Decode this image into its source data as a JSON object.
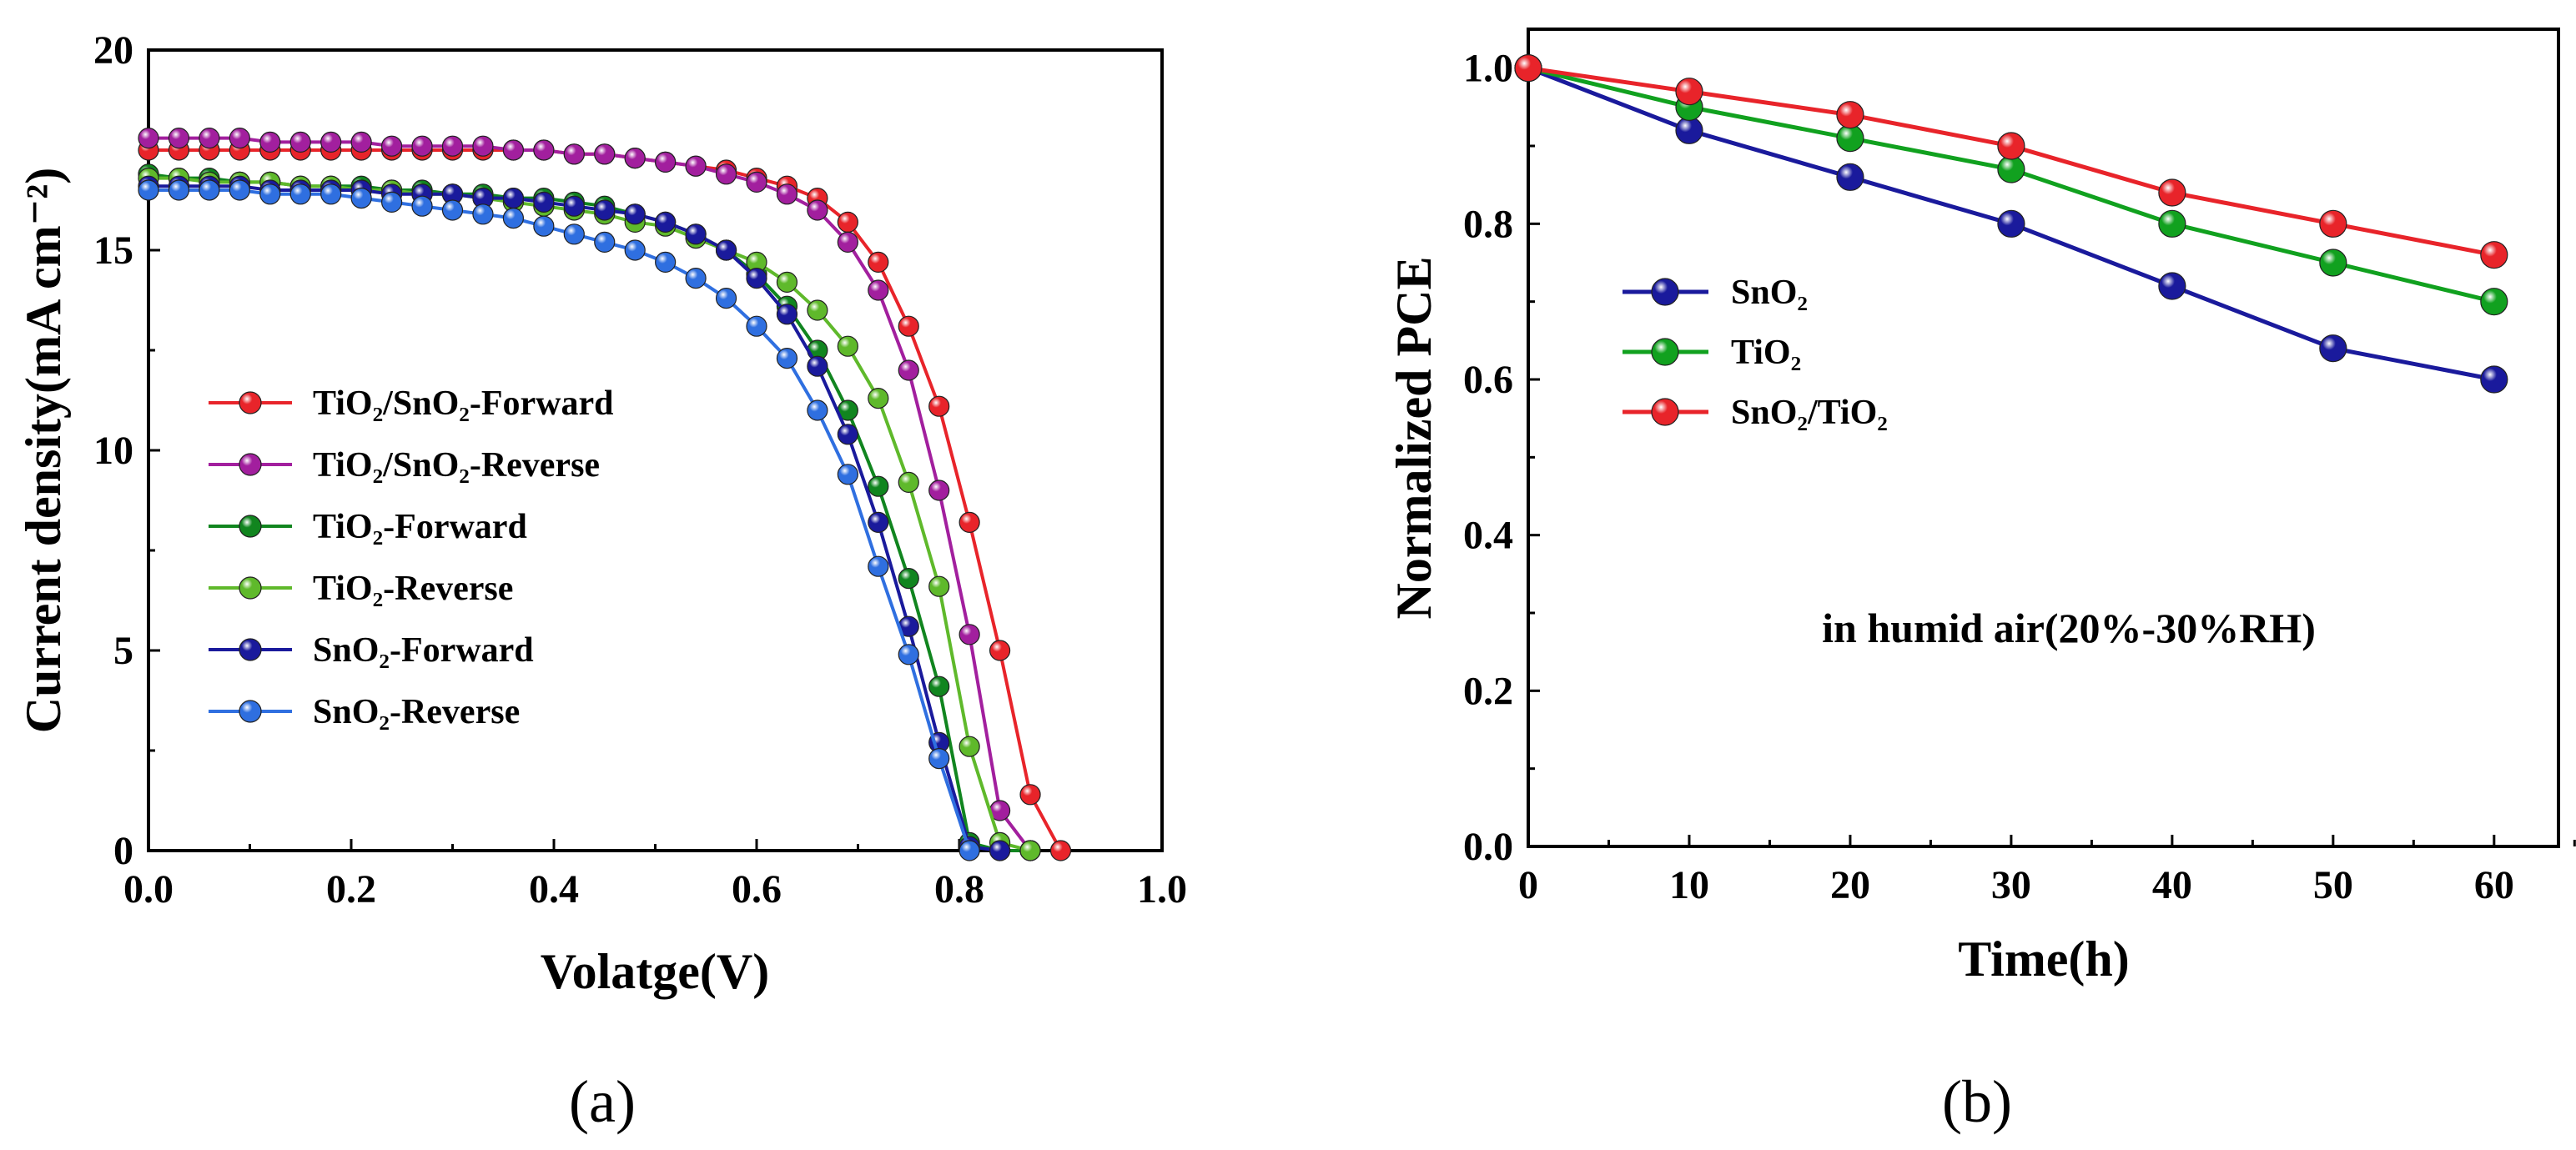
{
  "chart_data": [
    {
      "type": "line",
      "panel_label": "(a)",
      "xlabel": "Volatge(V)",
      "ylabel": "Current density(mA cm⁻²)",
      "xlim": [
        0,
        1.0
      ],
      "ylim": [
        0,
        20
      ],
      "xticks": [
        "0.0",
        "0.2",
        "0.4",
        "0.6",
        "0.8",
        "1.0"
      ],
      "yticks": [
        "0",
        "5",
        "10",
        "15",
        "20"
      ],
      "legend_position": "center-left",
      "series": [
        {
          "name": "TiO₂/SnO₂-Forward",
          "color": "#e8242a",
          "x": [
            0.0,
            0.03,
            0.06,
            0.09,
            0.12,
            0.15,
            0.18,
            0.21,
            0.24,
            0.27,
            0.3,
            0.33,
            0.36,
            0.39,
            0.42,
            0.45,
            0.48,
            0.51,
            0.54,
            0.57,
            0.6,
            0.63,
            0.66,
            0.69,
            0.72,
            0.75,
            0.78,
            0.81,
            0.84,
            0.87,
            0.9
          ],
          "y": [
            17.5,
            17.5,
            17.5,
            17.5,
            17.5,
            17.5,
            17.5,
            17.5,
            17.5,
            17.5,
            17.5,
            17.5,
            17.5,
            17.5,
            17.4,
            17.4,
            17.3,
            17.2,
            17.1,
            17.0,
            16.8,
            16.6,
            16.3,
            15.7,
            14.7,
            13.1,
            11.1,
            8.2,
            5.0,
            1.4,
            0.0
          ]
        },
        {
          "name": "TiO₂/SnO₂-Reverse",
          "color": "#a21f9e",
          "x": [
            0.0,
            0.03,
            0.06,
            0.09,
            0.12,
            0.15,
            0.18,
            0.21,
            0.24,
            0.27,
            0.3,
            0.33,
            0.36,
            0.39,
            0.42,
            0.45,
            0.48,
            0.51,
            0.54,
            0.57,
            0.6,
            0.63,
            0.66,
            0.69,
            0.72,
            0.75,
            0.78,
            0.81,
            0.84,
            0.87
          ],
          "y": [
            17.8,
            17.8,
            17.8,
            17.8,
            17.7,
            17.7,
            17.7,
            17.7,
            17.6,
            17.6,
            17.6,
            17.6,
            17.5,
            17.5,
            17.4,
            17.4,
            17.3,
            17.2,
            17.1,
            16.9,
            16.7,
            16.4,
            16.0,
            15.2,
            14.0,
            12.0,
            9.0,
            5.4,
            1.0,
            0.0
          ]
        },
        {
          "name": "TiO₂-Forward",
          "color": "#11851f",
          "x": [
            0.0,
            0.03,
            0.06,
            0.09,
            0.12,
            0.15,
            0.18,
            0.21,
            0.24,
            0.27,
            0.3,
            0.33,
            0.36,
            0.39,
            0.42,
            0.45,
            0.48,
            0.51,
            0.54,
            0.57,
            0.6,
            0.63,
            0.66,
            0.69,
            0.72,
            0.75,
            0.78,
            0.81,
            0.84,
            0.87
          ],
          "y": [
            16.9,
            16.8,
            16.8,
            16.7,
            16.7,
            16.6,
            16.6,
            16.6,
            16.5,
            16.5,
            16.4,
            16.4,
            16.3,
            16.3,
            16.2,
            16.1,
            15.9,
            15.7,
            15.4,
            15.0,
            14.4,
            13.6,
            12.5,
            11.0,
            9.1,
            6.8,
            4.1,
            0.2,
            0.0,
            0.0
          ]
        },
        {
          "name": "TiO₂-Reverse",
          "color": "#5fb92b",
          "x": [
            0.0,
            0.03,
            0.06,
            0.09,
            0.12,
            0.15,
            0.18,
            0.21,
            0.24,
            0.27,
            0.3,
            0.33,
            0.36,
            0.39,
            0.42,
            0.45,
            0.48,
            0.51,
            0.54,
            0.57,
            0.6,
            0.63,
            0.66,
            0.69,
            0.72,
            0.75,
            0.78,
            0.81,
            0.84,
            0.87
          ],
          "y": [
            16.8,
            16.8,
            16.7,
            16.7,
            16.7,
            16.6,
            16.6,
            16.5,
            16.5,
            16.4,
            16.4,
            16.3,
            16.2,
            16.1,
            16.0,
            15.9,
            15.7,
            15.6,
            15.3,
            15.0,
            14.7,
            14.2,
            13.5,
            12.6,
            11.3,
            9.2,
            6.6,
            2.6,
            0.2,
            0.0
          ]
        },
        {
          "name": "SnO₂-Forward",
          "color": "#1a1a9c",
          "x": [
            0.0,
            0.03,
            0.06,
            0.09,
            0.12,
            0.15,
            0.18,
            0.21,
            0.24,
            0.27,
            0.3,
            0.33,
            0.36,
            0.39,
            0.42,
            0.45,
            0.48,
            0.51,
            0.54,
            0.57,
            0.6,
            0.63,
            0.66,
            0.69,
            0.72,
            0.75,
            0.78,
            0.81,
            0.84
          ],
          "y": [
            16.6,
            16.6,
            16.6,
            16.6,
            16.5,
            16.5,
            16.5,
            16.5,
            16.4,
            16.4,
            16.4,
            16.3,
            16.3,
            16.2,
            16.1,
            16.0,
            15.9,
            15.7,
            15.4,
            15.0,
            14.3,
            13.4,
            12.1,
            10.4,
            8.2,
            5.6,
            2.7,
            0.1,
            0.0
          ]
        },
        {
          "name": "SnO₂-Reverse",
          "color": "#2f6fe0",
          "x": [
            0.0,
            0.03,
            0.06,
            0.09,
            0.12,
            0.15,
            0.18,
            0.21,
            0.24,
            0.27,
            0.3,
            0.33,
            0.36,
            0.39,
            0.42,
            0.45,
            0.48,
            0.51,
            0.54,
            0.57,
            0.6,
            0.63,
            0.66,
            0.69,
            0.72,
            0.75,
            0.78,
            0.81
          ],
          "y": [
            16.5,
            16.5,
            16.5,
            16.5,
            16.4,
            16.4,
            16.4,
            16.3,
            16.2,
            16.1,
            16.0,
            15.9,
            15.8,
            15.6,
            15.4,
            15.2,
            15.0,
            14.7,
            14.3,
            13.8,
            13.1,
            12.3,
            11.0,
            9.4,
            7.1,
            4.9,
            2.3,
            0.0
          ]
        }
      ]
    },
    {
      "type": "line",
      "panel_label": "(b)",
      "xlabel": "Time(h)",
      "ylabel": "Normalized PCE",
      "annotation": "in humid air(20%-30%RH)",
      "xlim": [
        0,
        64
      ],
      "ylim": [
        0,
        1.05
      ],
      "xticks": [
        "0",
        "10",
        "20",
        "30",
        "40",
        "50",
        "60"
      ],
      "yticks": [
        "0.0",
        "0.2",
        "0.4",
        "0.6",
        "0.8",
        "1.0"
      ],
      "legend_position": "upper-left",
      "x": [
        0,
        10,
        20,
        30,
        40,
        50,
        60
      ],
      "series": [
        {
          "name": "SnO₂",
          "color": "#1a1a9c",
          "values": [
            1.0,
            0.92,
            0.86,
            0.8,
            0.72,
            0.64,
            0.6
          ]
        },
        {
          "name": "TiO₂",
          "color": "#11a11f",
          "values": [
            1.0,
            0.95,
            0.91,
            0.87,
            0.8,
            0.75,
            0.7
          ]
        },
        {
          "name": "SnO₂/TiO₂",
          "color": "#e8242a",
          "values": [
            1.0,
            0.97,
            0.94,
            0.9,
            0.84,
            0.8,
            0.76
          ]
        }
      ]
    }
  ]
}
